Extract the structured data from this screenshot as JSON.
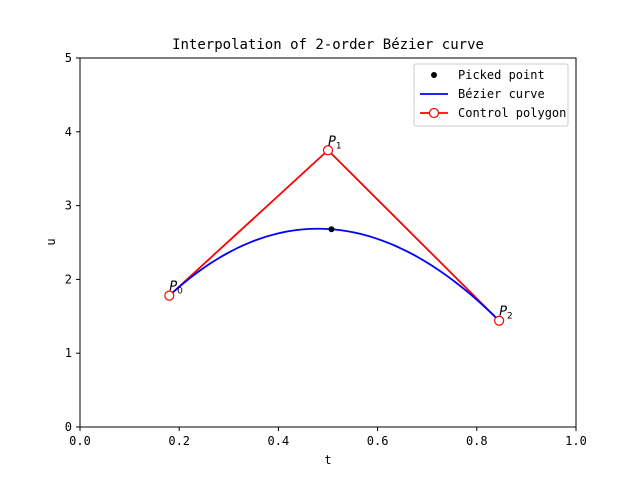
{
  "chart_data": {
    "type": "line",
    "title": "Interpolation of 2-order Bézier curve",
    "xlabel": "t",
    "ylabel": "u",
    "xlim": [
      0.0,
      1.0
    ],
    "ylim": [
      0,
      5
    ],
    "xticks": [
      "0.0",
      "0.2",
      "0.4",
      "0.6",
      "0.8",
      "1.0"
    ],
    "yticks": [
      "0",
      "1",
      "2",
      "3",
      "4",
      "5"
    ],
    "grid": false,
    "legend_position": "top-right",
    "control_points": [
      {
        "name": "P",
        "sub": "0",
        "x": 0.18,
        "y": 1.78
      },
      {
        "name": "P",
        "sub": "1",
        "x": 0.5,
        "y": 3.75
      },
      {
        "name": "P",
        "sub": "2",
        "x": 0.845,
        "y": 1.44
      }
    ],
    "picked_point": {
      "x": 0.507,
      "y": 2.68
    },
    "series": [
      {
        "name": "Picked point",
        "kind": "point",
        "color": "#000000"
      },
      {
        "name": "Bézier curve",
        "kind": "curve",
        "color": "#0000ff"
      },
      {
        "name": "Control polygon",
        "kind": "polygon",
        "color": "#ff0000"
      }
    ]
  }
}
